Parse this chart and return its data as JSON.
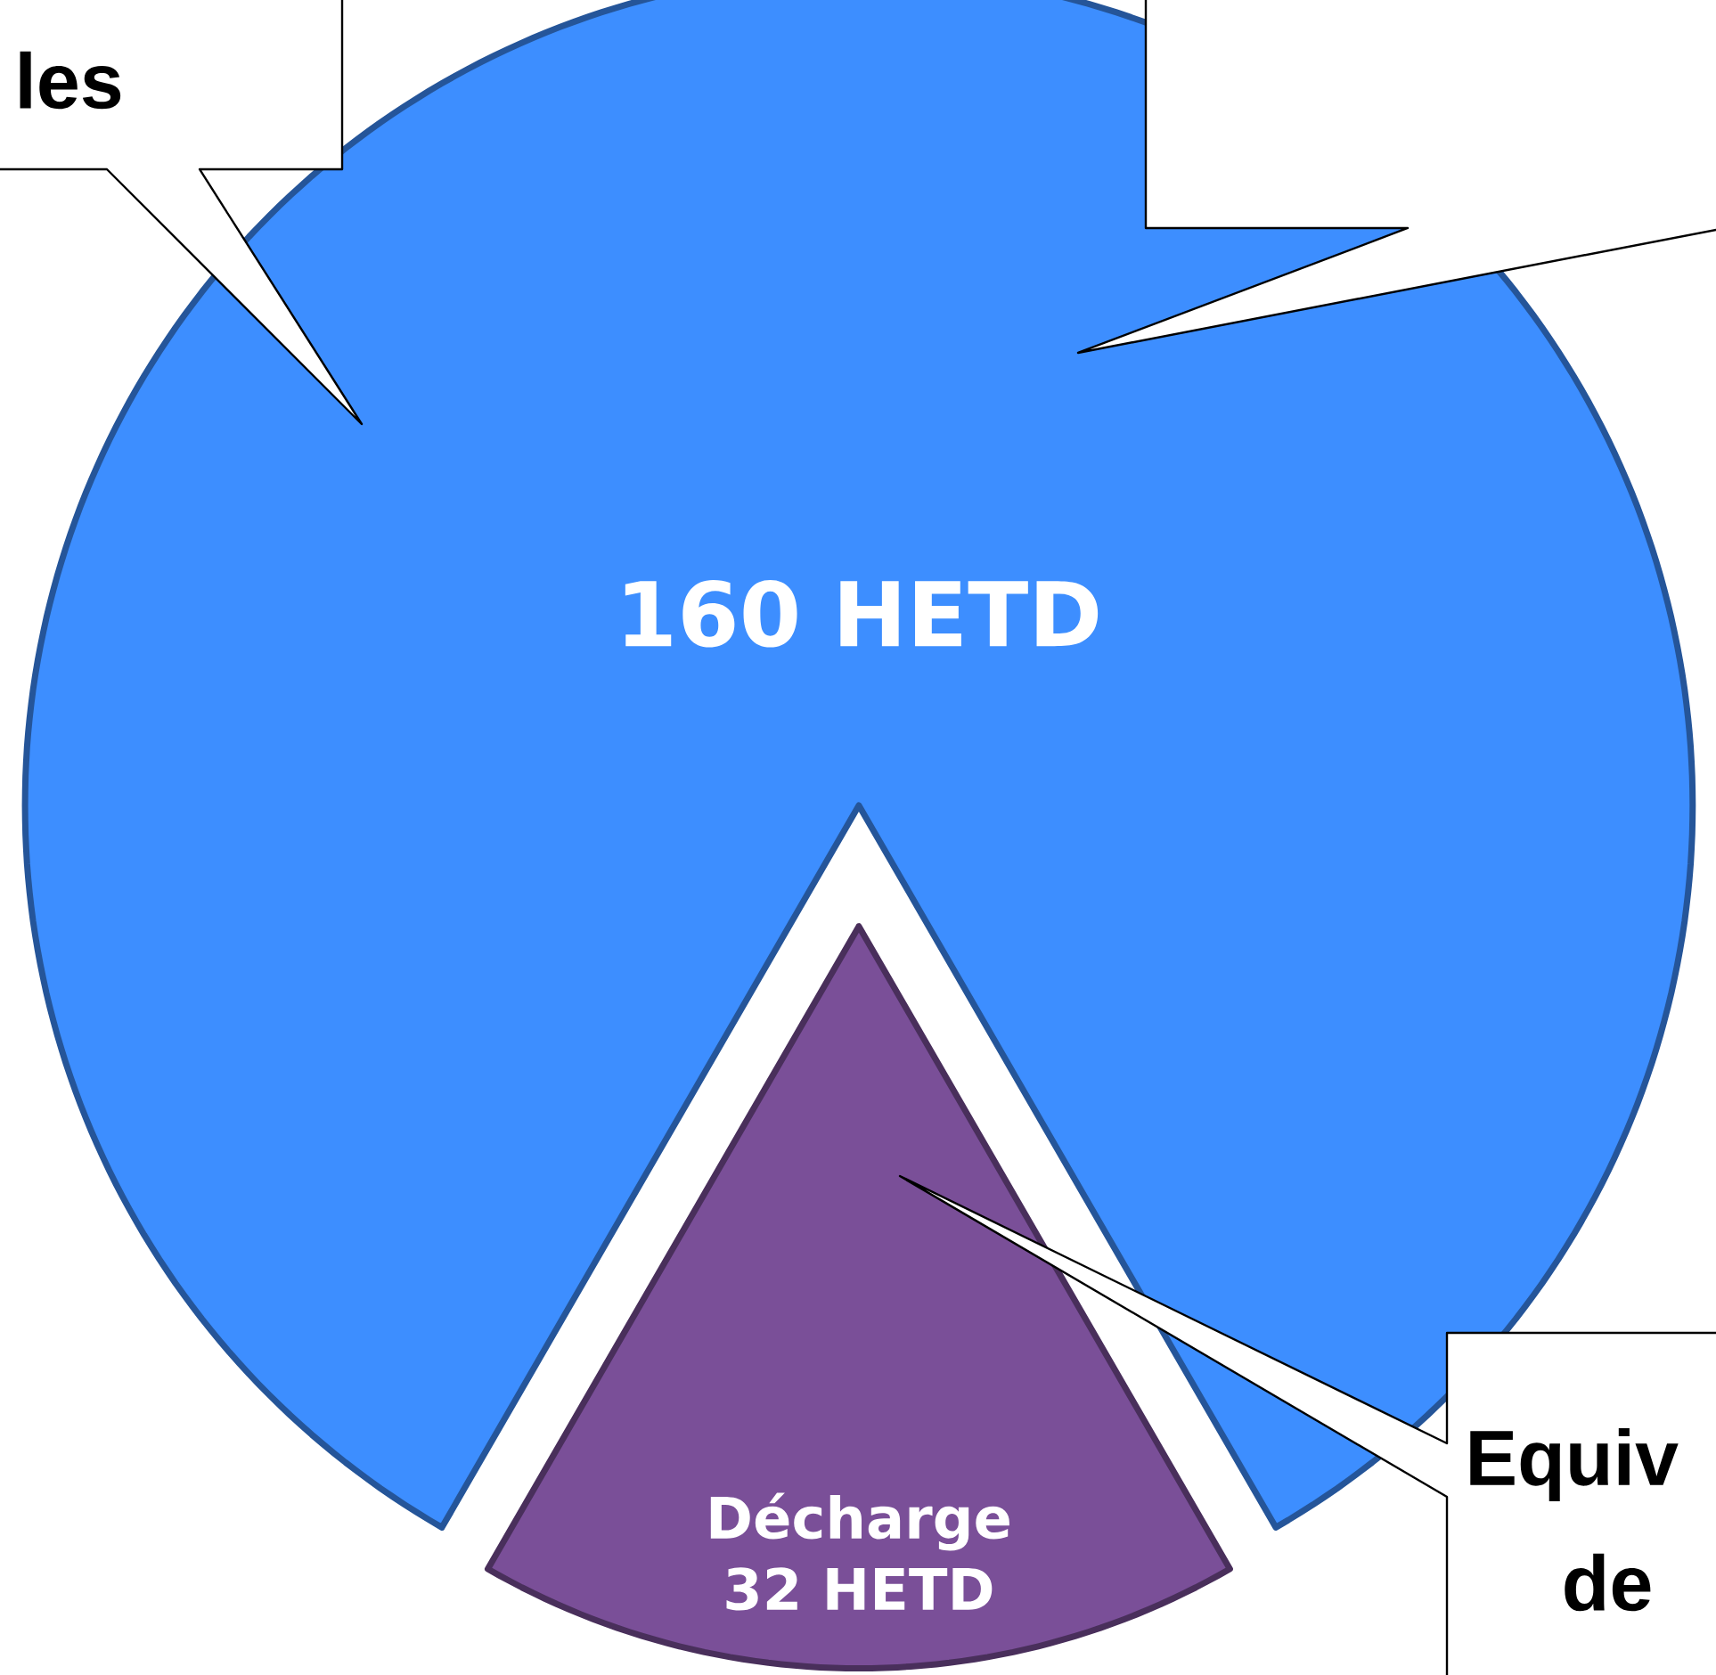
{
  "chart_data": {
    "type": "pie",
    "categories": [
      null,
      "Décharge"
    ],
    "values": [
      160,
      32
    ],
    "value_labels": [
      "160 HETD",
      "32 HETD"
    ],
    "colors": [
      "#3d8eff",
      "#7a4f98"
    ],
    "annotations": [
      "les",
      "Equiv",
      "de"
    ]
  }
}
